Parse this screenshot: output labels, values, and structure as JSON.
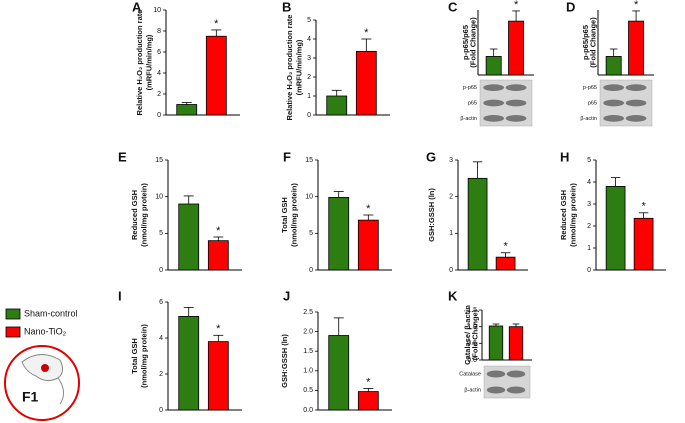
{
  "legend": [
    {
      "name": "Sham-control",
      "color": "#2e7d12"
    },
    {
      "name": "Nano-TiO₂",
      "color": "#ff0000"
    }
  ],
  "badge": "F1",
  "chart_data": [
    {
      "type": "bar",
      "label": "A",
      "ylabel": [
        "Relative H₂O₂ production rate",
        "(mRFU/min/mg)"
      ],
      "values": [
        1.0,
        7.5
      ],
      "errors": [
        0.2,
        0.6
      ],
      "ylim": [
        0,
        10
      ],
      "yticks": [
        0,
        2,
        4,
        6,
        8,
        10
      ],
      "significance": "*"
    },
    {
      "type": "bar",
      "label": "B",
      "ylabel": [
        "Relative H₂O₂ production rate",
        "(mRFU/min/mg)"
      ],
      "values": [
        1.0,
        3.35
      ],
      "errors": [
        0.3,
        0.65
      ],
      "ylim": [
        0,
        5
      ],
      "yticks": [
        0,
        1,
        2,
        3,
        4,
        5
      ],
      "significance": "*"
    },
    {
      "type": "bar",
      "label": "C",
      "ylabel": [
        "p-p65/p65",
        "(Fold Change)"
      ],
      "values": [
        1.0,
        2.9
      ],
      "errors": [
        0.4,
        0.55
      ],
      "ylim": [
        0,
        3.5
      ],
      "significance": "*",
      "blot": [
        "p-p65",
        "p65",
        "β-actin"
      ]
    },
    {
      "type": "bar",
      "label": "D",
      "ylabel": [
        "p-p65/p65",
        "(Fold Change)"
      ],
      "values": [
        1.0,
        2.9
      ],
      "errors": [
        0.4,
        0.55
      ],
      "ylim": [
        0,
        3.5
      ],
      "significance": "*",
      "blot": [
        "p-p65",
        "p65",
        "β-actin"
      ]
    },
    {
      "type": "bar",
      "label": "E",
      "ylabel": [
        "Reduced GSH",
        "(nmol/mg protein)"
      ],
      "values": [
        9.0,
        4.0
      ],
      "errors": [
        1.1,
        0.5
      ],
      "ylim": [
        0,
        15
      ],
      "yticks": [
        0,
        5,
        10,
        15
      ],
      "significance": "*"
    },
    {
      "type": "bar",
      "label": "F",
      "ylabel": [
        "Total GSH",
        "(nmol/mg protein)"
      ],
      "values": [
        9.9,
        6.8
      ],
      "errors": [
        0.8,
        0.7
      ],
      "ylim": [
        0,
        15
      ],
      "yticks": [
        0,
        5,
        10,
        15
      ],
      "significance": "*"
    },
    {
      "type": "bar",
      "label": "G",
      "ylabel": [
        "GSH:GSSH (ln)"
      ],
      "values": [
        2.5,
        0.35
      ],
      "errors": [
        0.45,
        0.12
      ],
      "ylim": [
        0,
        3
      ],
      "yticks": [
        0,
        1,
        2,
        3
      ],
      "significance": "*"
    },
    {
      "type": "bar",
      "label": "H",
      "ylabel": [
        "Reduced GSH",
        "(nmol/mg protein)"
      ],
      "values": [
        3.8,
        2.35
      ],
      "errors": [
        0.4,
        0.25
      ],
      "ylim": [
        0,
        5
      ],
      "yticks": [
        0,
        1,
        2,
        3,
        4,
        5
      ],
      "significance": "*"
    },
    {
      "type": "bar",
      "label": "I",
      "ylabel": [
        "Total GSH",
        "(nmol/mg protein)"
      ],
      "values": [
        5.2,
        3.8
      ],
      "errors": [
        0.5,
        0.35
      ],
      "ylim": [
        0,
        6
      ],
      "yticks": [
        0,
        2,
        4,
        6
      ],
      "significance": "*"
    },
    {
      "type": "bar",
      "label": "J",
      "ylabel": [
        "GSH:GSSH (ln)"
      ],
      "values": [
        1.9,
        0.47
      ],
      "errors": [
        0.45,
        0.08
      ],
      "ylim": [
        0,
        2.5
      ],
      "yticks": [
        {
          "value": 0,
          "label": "0.0"
        },
        {
          "value": 0.5,
          "label": "0.5"
        },
        {
          "value": 1,
          "label": "1.0"
        },
        {
          "value": 1.5,
          "label": "1.5"
        },
        {
          "value": 2,
          "label": "2.0"
        },
        {
          "value": 2.5,
          "label": "2.5"
        }
      ],
      "significance": "*"
    },
    {
      "type": "bar",
      "label": "K",
      "ylabel": [
        "Catalase/ β-actin",
        "(Fold Change)"
      ],
      "values": [
        1.02,
        1.0
      ],
      "errors": [
        0.06,
        0.08
      ],
      "ylim": [
        0,
        1.5
      ],
      "yticks": [
        {
          "value": 0,
          "label": "0.0"
        },
        {
          "value": 0.5,
          "label": "0.5"
        },
        {
          "value": 1,
          "label": "1.0"
        },
        {
          "value": 1.5,
          "label": "1.5"
        }
      ],
      "blot": [
        "Catalase",
        "β-actin"
      ]
    }
  ]
}
